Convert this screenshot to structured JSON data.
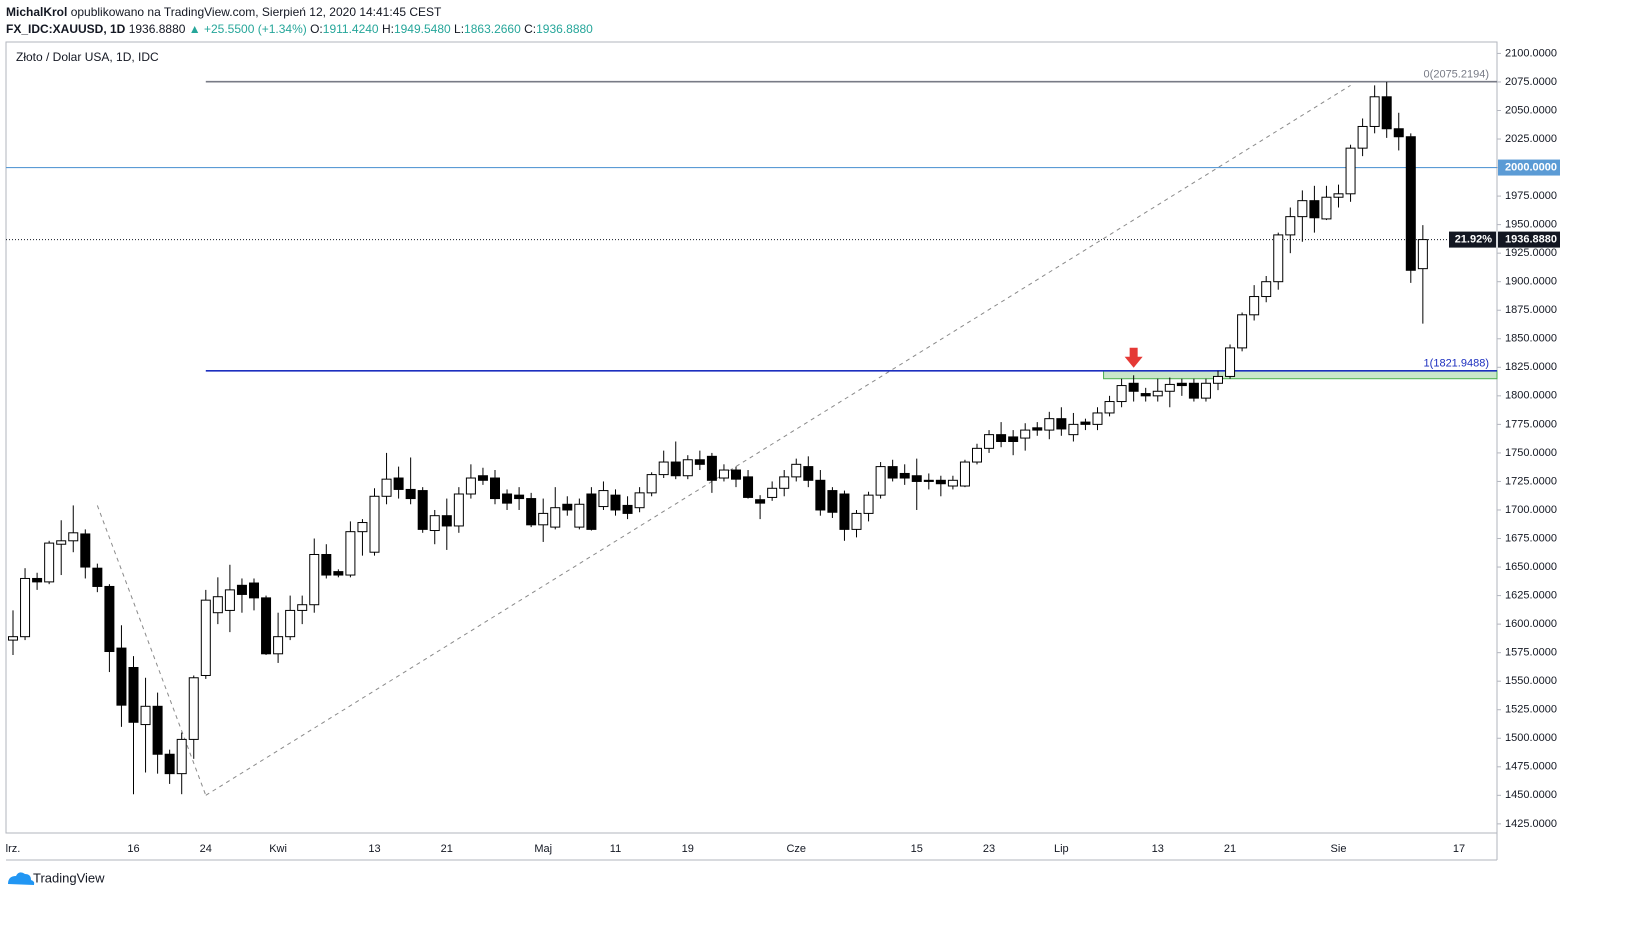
{
  "header": {
    "author": "MichalKrol",
    "published": "opublikowano na TradingView.com, Sierpień 12, 2020 14:41:45 CEST",
    "symbol": "FX_IDC:XAUUSD, 1D",
    "last": "1936.8880",
    "change": "▲ +25.5500 (+1.34%)",
    "ohlc": [
      {
        "label": "O:",
        "value": "1911.4240"
      },
      {
        "label": "H:",
        "value": "1949.5480"
      },
      {
        "label": "L:",
        "value": "1863.2660"
      },
      {
        "label": "C:",
        "value": "1936.8880"
      }
    ]
  },
  "footer": {
    "brand": "TradingView"
  },
  "chart_data": {
    "type": "candlestick",
    "title": "Złoto / Dolar USA, 1D, IDC",
    "categories": [
      "lrz.",
      null,
      null,
      null,
      null,
      null,
      null,
      null,
      null,
      null,
      "16",
      null,
      null,
      null,
      null,
      null,
      "24",
      null,
      null,
      null,
      null,
      null,
      "Kwi",
      null,
      null,
      null,
      null,
      null,
      null,
      null,
      "13",
      null,
      null,
      null,
      null,
      null,
      "21",
      null,
      null,
      null,
      null,
      null,
      null,
      null,
      "Maj",
      null,
      null,
      null,
      null,
      null,
      "11",
      null,
      null,
      null,
      null,
      null,
      "19",
      null,
      null,
      null,
      null,
      null,
      null,
      null,
      null,
      "Cze",
      null,
      null,
      null,
      null,
      null,
      null,
      null,
      null,
      null,
      "15",
      null,
      null,
      null,
      null,
      null,
      "23",
      null,
      null,
      null,
      null,
      null,
      "Lip",
      null,
      null,
      null,
      null,
      null,
      null,
      null,
      "13",
      null,
      null,
      null,
      null,
      null,
      "21",
      null,
      null,
      null,
      null,
      null,
      null,
      null,
      null,
      "Sie",
      null,
      null,
      null,
      null,
      null,
      null,
      null,
      null,
      null,
      "17"
    ],
    "open": [
      1586,
      1589,
      1640,
      1637,
      1670,
      1673,
      1679,
      1649,
      1633,
      1579,
      1562,
      1512,
      1528,
      1486,
      1469,
      1499,
      1555,
      1610,
      1612,
      1634,
      1636,
      1623,
      1574,
      1589,
      1612,
      1617,
      1661,
      1646,
      1643,
      1681,
      1663,
      1712,
      1728,
      1718,
      1717,
      1682,
      1695,
      1686,
      1714,
      1730,
      1728,
      1714,
      1713,
      1710,
      1687,
      1685,
      1705,
      1685,
      1714,
      1703,
      1713,
      1704,
      1702,
      1715,
      1731,
      1742,
      1730,
      1744,
      1747,
      1728,
      1735,
      1729,
      1709,
      1711,
      1719,
      1729,
      1738,
      1726,
      1717,
      1714,
      1683,
      1697,
      1713,
      1738,
      1732,
      1730,
      1726,
      1726,
      1721,
      1721,
      1742,
      1754,
      1766,
      1764,
      1763,
      1772,
      1770,
      1780,
      1766,
      1777,
      1775,
      1785,
      1795,
      1811,
      1802,
      1800,
      1804,
      1811,
      1811,
      1798,
      1811,
      1817,
      1842,
      1871,
      1887,
      1900,
      1941,
      1957,
      1971,
      1955,
      1974,
      1977,
      2017,
      2036,
      2062,
      2034,
      2027,
      1911.424,
      null,
      null,
      null
    ],
    "high": [
      1612,
      1649,
      1645,
      1673,
      1691,
      1704,
      1683,
      1653,
      1635,
      1599,
      1572,
      1553,
      1540,
      1490,
      1505,
      1555,
      1630,
      1641,
      1652,
      1640,
      1640,
      1625,
      1610,
      1625,
      1625,
      1675,
      1670,
      1648,
      1690,
      1692,
      1719,
      1750,
      1738,
      1746,
      1720,
      1700,
      1710,
      1720,
      1740,
      1737,
      1735,
      1718,
      1720,
      1715,
      1710,
      1720,
      1712,
      1710,
      1720,
      1725,
      1718,
      1712,
      1720,
      1733,
      1752,
      1760,
      1748,
      1752,
      1750,
      1740,
      1738,
      1735,
      1713,
      1725,
      1735,
      1745,
      1747,
      1735,
      1720,
      1717,
      1700,
      1716,
      1742,
      1744,
      1740,
      1745,
      1732,
      1730,
      1730,
      1744,
      1758,
      1770,
      1777,
      1770,
      1776,
      1777,
      1786,
      1790,
      1785,
      1780,
      1790,
      1800,
      1815,
      1818,
      1807,
      1815,
      1816,
      1815,
      1815,
      1815,
      1822,
      1845,
      1873,
      1897,
      1905,
      1943,
      1965,
      1980,
      1984,
      1984,
      1985,
      2020,
      2043,
      2072,
      2075,
      2048,
      2030,
      1949.548,
      null,
      null,
      null
    ],
    "low": [
      1573,
      1586,
      1630,
      1635,
      1643,
      1663,
      1640,
      1628,
      1558,
      1510,
      1451,
      1470,
      1469,
      1460,
      1451,
      1482,
      1552,
      1600,
      1593,
      1610,
      1612,
      1573,
      1566,
      1586,
      1600,
      1610,
      1640,
      1641,
      1641,
      1660,
      1660,
      1705,
      1710,
      1705,
      1680,
      1670,
      1665,
      1680,
      1710,
      1722,
      1705,
      1700,
      1700,
      1685,
      1672,
      1683,
      1695,
      1683,
      1682,
      1700,
      1695,
      1692,
      1698,
      1712,
      1728,
      1727,
      1727,
      1735,
      1715,
      1725,
      1720,
      1710,
      1692,
      1708,
      1712,
      1725,
      1720,
      1695,
      1693,
      1673,
      1676,
      1690,
      1710,
      1725,
      1722,
      1700,
      1718,
      1712,
      1718,
      1720,
      1740,
      1750,
      1755,
      1748,
      1752,
      1765,
      1762,
      1765,
      1760,
      1770,
      1770,
      1782,
      1790,
      1795,
      1795,
      1795,
      1790,
      1800,
      1795,
      1795,
      1805,
      1815,
      1839,
      1866,
      1882,
      1893,
      1925,
      1935,
      1943,
      1954,
      1965,
      1970,
      2010,
      2030,
      2026,
      2015,
      1899,
      1863.266,
      null,
      null,
      null
    ],
    "close": [
      1589,
      1640,
      1637,
      1671,
      1673,
      1680,
      1650,
      1633,
      1576,
      1529,
      1514,
      1528,
      1486,
      1469,
      1499,
      1553,
      1621,
      1624,
      1630,
      1626,
      1623,
      1574,
      1589,
      1612,
      1617,
      1661,
      1643,
      1643,
      1681,
      1689,
      1712,
      1727,
      1718,
      1710,
      1683,
      1695,
      1686,
      1714,
      1728,
      1726,
      1710,
      1706,
      1710,
      1687,
      1697,
      1702,
      1700,
      1705,
      1683,
      1717,
      1700,
      1697,
      1715,
      1731,
      1742,
      1730,
      1744,
      1740,
      1726,
      1735,
      1727,
      1711,
      1706,
      1719,
      1729,
      1740,
      1726,
      1700,
      1698,
      1683,
      1697,
      1713,
      1738,
      1728,
      1728,
      1725,
      1725,
      1723,
      1726,
      1742,
      1754,
      1766,
      1760,
      1760,
      1770,
      1770,
      1780,
      1771,
      1775,
      1775,
      1785,
      1795,
      1809,
      1804,
      1800,
      1804,
      1810,
      1809,
      1798,
      1811,
      1817,
      1842,
      1871,
      1887,
      1900,
      1941,
      1957,
      1971,
      1956,
      1974,
      1977,
      2017,
      2036,
      2062,
      2034,
      2027,
      1910,
      1936.888,
      null,
      null,
      null
    ],
    "up_color": "#ffffff",
    "down_color": "#000000",
    "grid": false,
    "ylim": [
      1417,
      2110
    ],
    "yticks": [
      {
        "value": 1425,
        "label": "1425.0000"
      },
      {
        "value": 1450,
        "label": "1450.0000"
      },
      {
        "value": 1475,
        "label": "1475.0000"
      },
      {
        "value": 1500,
        "label": "1500.0000"
      },
      {
        "value": 1525,
        "label": "1525.0000"
      },
      {
        "value": 1550,
        "label": "1550.0000"
      },
      {
        "value": 1575,
        "label": "1575.0000"
      },
      {
        "value": 1600,
        "label": "1600.0000"
      },
      {
        "value": 1625,
        "label": "1625.0000"
      },
      {
        "value": 1650,
        "label": "1650.0000"
      },
      {
        "value": 1675,
        "label": "1675.0000"
      },
      {
        "value": 1700,
        "label": "1700.0000"
      },
      {
        "value": 1725,
        "label": "1725.0000"
      },
      {
        "value": 1750,
        "label": "1750.0000"
      },
      {
        "value": 1775,
        "label": "1775.0000"
      },
      {
        "value": 1800,
        "label": "1800.0000"
      },
      {
        "value": 1825,
        "label": "1825.0000"
      },
      {
        "value": 1850,
        "label": "1850.0000"
      },
      {
        "value": 1875,
        "label": "1875.0000"
      },
      {
        "value": 1900,
        "label": "1900.0000"
      },
      {
        "value": 1925,
        "label": "1925.0000"
      },
      {
        "value": 1950,
        "label": "1950.0000"
      },
      {
        "value": 1975,
        "label": "1975.0000"
      },
      {
        "value": 2000,
        "label": "2000.0000"
      },
      {
        "value": 2025,
        "label": "2025.0000"
      },
      {
        "value": 2050,
        "label": "2050.0000"
      },
      {
        "value": 2075,
        "label": "2075.0000"
      },
      {
        "value": 2100,
        "label": "2100.0000"
      }
    ],
    "levels": [
      {
        "value": 2075.2194,
        "label": "0(2075.2194)",
        "color": "#787b86",
        "start": 16
      },
      {
        "value": 2000,
        "label": "2000.0000",
        "color": "#5b9bd5"
      },
      {
        "value": 1821.9488,
        "label": "1(1821.9488)",
        "color": "#1c2fbf",
        "start": 16
      }
    ],
    "last_price": {
      "value": 1936.888,
      "label": "1936.8880",
      "percent": "21.92%"
    },
    "zone": {
      "low": 1815,
      "high": 1822,
      "start": 91,
      "color": "#a5d6a7"
    },
    "trendlines": [
      {
        "from": [
          7,
          1704
        ],
        "to": [
          16,
          1450
        ]
      },
      {
        "from": [
          16,
          1450
        ],
        "to": [
          111,
          2072
        ]
      }
    ],
    "arrow": {
      "at": 93,
      "value": 1822,
      "color": "#e53935"
    }
  }
}
